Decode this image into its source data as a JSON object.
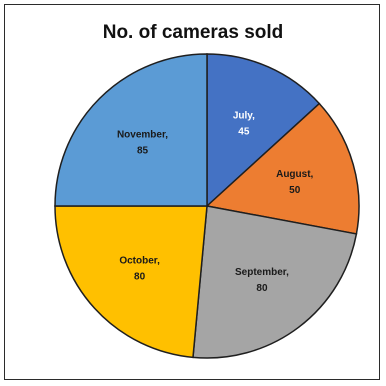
{
  "chart_data": {
    "type": "pie",
    "title": "No. of cameras sold",
    "slices": [
      {
        "name": "July",
        "value": 45,
        "label": "July,",
        "value_label": "45",
        "color": "#4472C4",
        "label_color": "#ffffff"
      },
      {
        "name": "August",
        "value": 50,
        "label": "August,",
        "value_label": "50",
        "color": "#ED7D31",
        "label_color": "#1a1a1a"
      },
      {
        "name": "September",
        "value": 80,
        "label": "September,",
        "value_label": "80",
        "color": "#A5A5A5",
        "label_color": "#1a1a1a"
      },
      {
        "name": "October",
        "value": 80,
        "label": "October,",
        "value_label": "80",
        "color": "#FFC000",
        "label_color": "#1a1a1a"
      },
      {
        "name": "November",
        "value": 85,
        "label": "November,",
        "value_label": "85",
        "color": "#5B9BD5",
        "label_color": "#1a1a1a"
      }
    ]
  }
}
